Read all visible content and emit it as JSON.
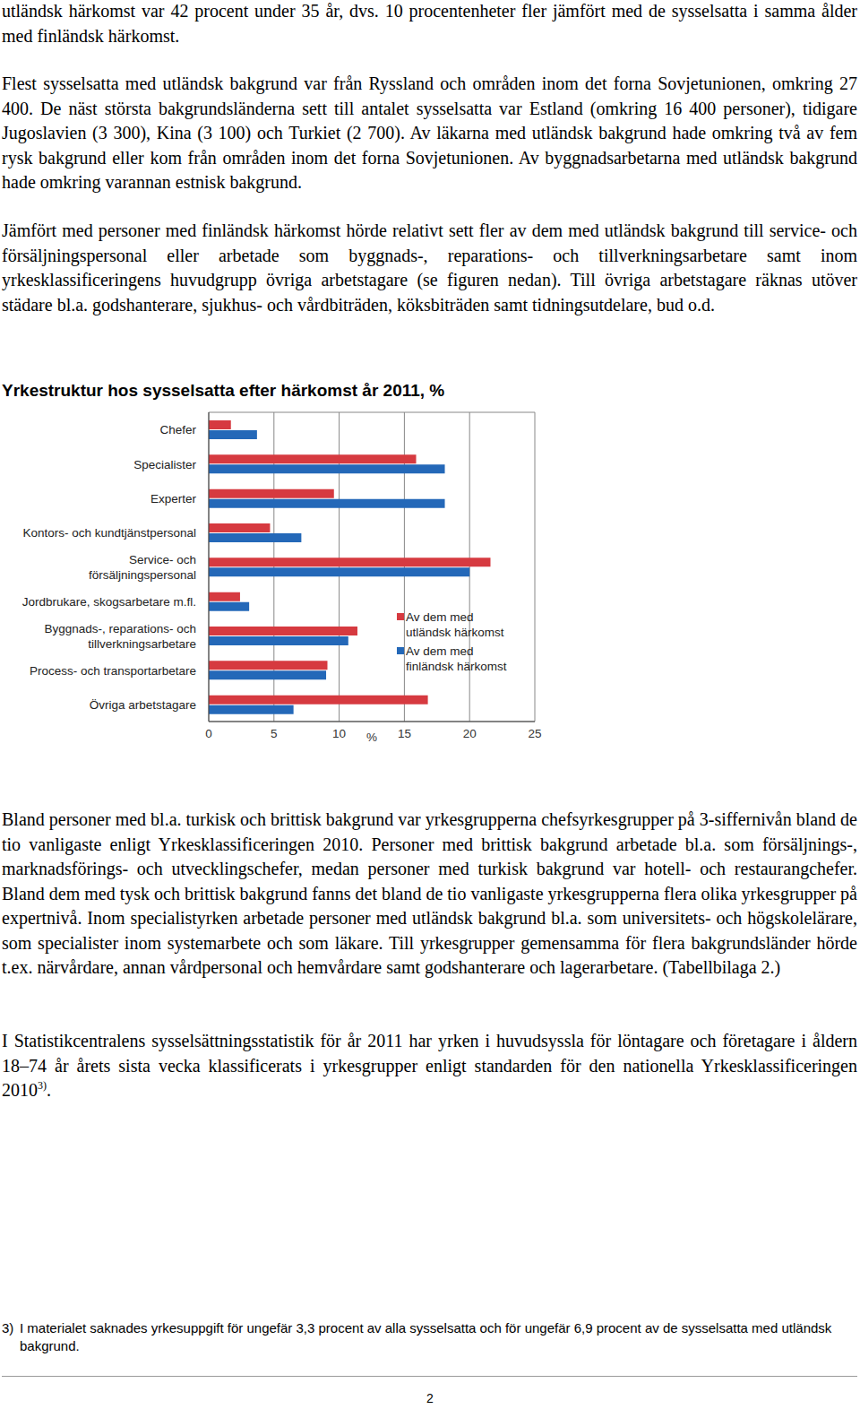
{
  "paragraphs": [
    {
      "text": "utländsk härkomst var 42 procent under 35 år, dvs. 10 procentenheter fler jämfört med de sysselsatta i samma ålder med finländsk härkomst."
    },
    {
      "text": "Flest sysselsatta med utländsk bakgrund var från Ryssland och områden inom det forna Sovjetunionen, omkring 27 400. De näst största bakgrundsländerna sett till antalet sysselsatta var Estland (omkring 16 400 personer), tidigare Jugoslavien (3 300), Kina (3 100) och Turkiet (2 700). Av läkarna med utländsk bakgrund hade omkring två av fem rysk bakgrund eller kom från områden inom det forna Sovjetunionen. Av byggnadsarbetarna med utländsk bakgrund hade omkring varannan estnisk bakgrund."
    },
    {
      "text": "Jämfört med personer med finländsk härkomst hörde relativt sett fler av dem med utländsk bakgrund till service- och försäljningspersonal eller arbetade som byggnads-, reparations- och tillverkningsarbetare samt inom yrkesklassificeringens huvudgrupp övriga arbetstagare (se figuren nedan). Till övriga arbetstagare räknas utöver städare bl.a. godshanterare, sjukhus- och vårdbiträden, köksbiträden samt tidningsutdelare, bud o.d."
    },
    {
      "text": "Bland personer med bl.a. turkisk och brittisk bakgrund var yrkesgrupperna chefsyrkesgrupper på 3-siffernivån bland de tio vanligaste enligt Yrkesklassificeringen 2010. Personer med brittisk bakgrund arbetade bl.a. som försäljnings-, marknadsförings- och utvecklingschefer, medan personer med turkisk bakgrund var hotell- och restaurangchefer. Bland dem med tysk och brittisk bakgrund fanns det bland de tio vanligaste yrkesgrupperna flera olika yrkesgrupper på expertnivå. Inom specialistyrken arbetade personer med utländsk bakgrund bl.a. som universitets- och högskolelärare, som specialister inom systemarbete och som läkare. Till yrkesgrupper gemensamma för flera bakgrundsländer hörde t.ex. närvårdare, annan vårdpersonal och hemvårdare samt godshanterare och lagerarbetare. (Tabellbilaga 2.)"
    },
    {
      "text": "I Statistikcentralens sysselsättningsstatistik för år 2011 har yrken i huvudsyssla för löntagare och företagare i åldern 18–74 år årets sista vecka klassificerats i yrkesgrupper enligt standarden för den nationella Yrkesklassificeringen 2010",
      "footnote_ref": "3)",
      "text_after": "."
    }
  ],
  "chart_data": {
    "type": "bar",
    "orientation": "horizontal",
    "title": "Yrkestruktur hos sysselsatta efter härkomst år 2011, %",
    "categories": [
      "Chefer",
      "Specialister",
      "Experter",
      "Kontors- och kundtjänstpersonal",
      "Service- och\nförsäljningspersonal",
      "Jordbrukare, skogsarbetare m.fl.",
      "Byggnads-, reparations- och\ntillverkningsarbetare",
      "Process- och transportarbetare",
      "Övriga arbetstagare"
    ],
    "series": [
      {
        "name": "Av dem med\nutländsk härkomst",
        "color": "#d63a40",
        "values": [
          1.7,
          15.9,
          9.6,
          4.7,
          21.6,
          2.4,
          11.4,
          9.1,
          16.8
        ]
      },
      {
        "name": "Av dem med\nfinländsk härkomst",
        "color": "#2468b8",
        "values": [
          3.7,
          18.1,
          18.1,
          7.1,
          20.0,
          3.1,
          10.7,
          9.0,
          6.5
        ]
      }
    ],
    "xlim": [
      0,
      25
    ],
    "xticks": [
      0,
      5,
      10,
      15,
      20,
      25
    ],
    "x_label": "%",
    "grid": true,
    "legend": "right"
  },
  "footnote": {
    "marker": "3)",
    "text": "I materialet saknades yrkesuppgift för ungefär 3,3 procent av alla sysselsatta och för ungefär 6,9 procent av de sysselsatta med utländsk bakgrund."
  },
  "page_number": "2"
}
